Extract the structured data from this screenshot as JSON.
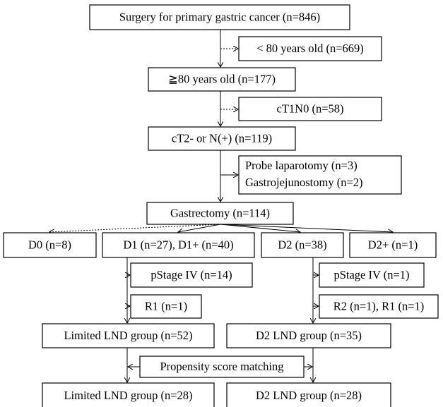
{
  "nodes": [
    "Surgery for primary gastric cancer (n=846)",
    "< 80 years old (n=669)",
    "≧80 years old (n=177)",
    "cT1N0 (n=58)",
    "cT2- or N(+) (n=119)",
    [
      "Probe laparotomy (n=3)",
      "Gastrojejunostomy (n=2)"
    ],
    "Gastrectomy (n=114)",
    "D0 (n=8)",
    "D1 (n=27), D1+ (n=40)",
    "D2 (n=38)",
    "D2+ (n=1)",
    "pStage IV (n=14)",
    "R1 (n=1)",
    "pStage IV (n=1)",
    "R2 (n=1), R1 (n=1)",
    "Limited LND group (n=52)",
    "D2 LND group (n=35)",
    "Propensity score matching",
    "Limited LND group (n=28)",
    "D2 LND group (n=28)"
  ]
}
